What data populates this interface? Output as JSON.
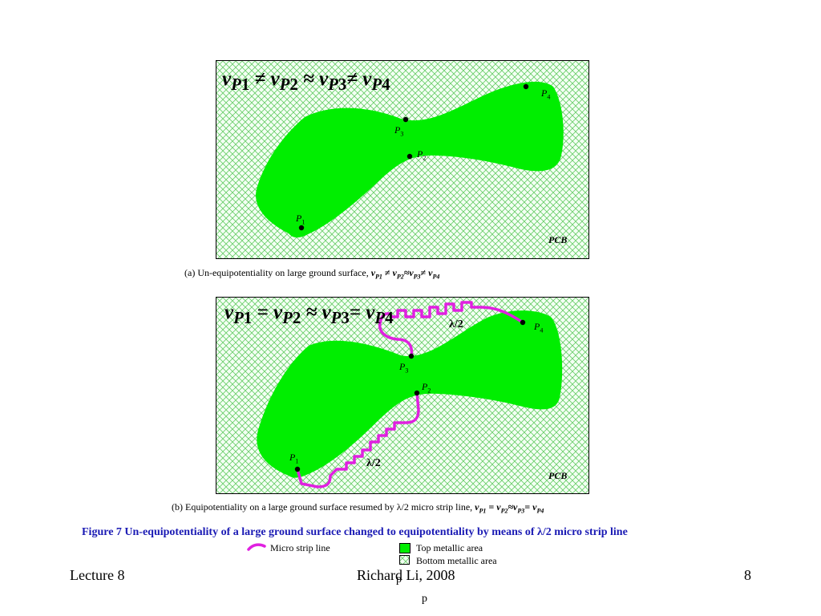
{
  "panel_a": {
    "equation": {
      "v1": "v",
      "s1": "P",
      "n1": "1",
      "op1": "≠",
      "v2": "v",
      "s2": "P",
      "n2": "2",
      "op2": "≈",
      "v3": "v",
      "s3": "P",
      "n3": "3",
      "op3": "≠",
      "v4": "v",
      "s4": "P",
      "n4": "4"
    },
    "points": {
      "p1": {
        "letter": "P",
        "index": "1"
      },
      "p2": {
        "letter": "P",
        "index": "2"
      },
      "p3": {
        "letter": "P",
        "index": "3"
      },
      "p4": {
        "letter": "P",
        "index": "4"
      }
    },
    "pcb_label": "PCB",
    "caption": {
      "prefix": "(a)   Un-equipotentiality on large ground surface, ",
      "eq": {
        "v1": "v",
        "s1": "P1",
        "op1": " ≠ ",
        "v2": "v",
        "s2": "P2",
        "op2": "≈",
        "v3": "v",
        "s3": "P3",
        "op3": "≠ ",
        "v4": "v",
        "s4": "P4"
      }
    }
  },
  "panel_b": {
    "equation": {
      "v1": "v",
      "s1": "P",
      "n1": "1",
      "op1": "=",
      "v2": "v",
      "s2": "P",
      "n2": "2",
      "op2": "≈",
      "v3": "v",
      "s3": "P",
      "n3": "3",
      "op3": "=",
      "v4": "v",
      "s4": "P",
      "n4": "4"
    },
    "points": {
      "p1": {
        "letter": "P",
        "index": "1"
      },
      "p2": {
        "letter": "P",
        "index": "2"
      },
      "p3": {
        "letter": "P",
        "index": "3"
      },
      "p4": {
        "letter": "P",
        "index": "4"
      }
    },
    "lambda_top": "λ/2",
    "lambda_bottom": "λ/2",
    "pcb_label": "PCB",
    "caption": {
      "prefix": "(b)   Equipotentiality on a large ground surface resumed by λ/2 micro strip line, ",
      "eq": {
        "v1": "v",
        "s1": "P1",
        "op1": " = ",
        "v2": "v",
        "s2": "P2",
        "op2": "≈",
        "v3": "v",
        "s3": "P3",
        "op3": "= ",
        "v4": "v",
        "s4": "P4"
      }
    }
  },
  "figure_caption": "Figure 7    Un-equipotentiality of a large ground surface changed to equipotentiality by means of λ/2 micro strip line",
  "legend": {
    "micro_strip": "Micro strip line",
    "top_metal": "Top metallic area",
    "bottom_metal": "Bottom metallic area"
  },
  "colors": {
    "top_metal": "#00ee00",
    "strip": "#e020e0",
    "hatch": "#66cc66",
    "caption_blue": "#1a1ab4"
  },
  "footer": {
    "left": "Lecture 8",
    "center": "Richard Li, 2008",
    "right": "8",
    "overlap_mark": "p",
    "bottom_mark": "p"
  }
}
